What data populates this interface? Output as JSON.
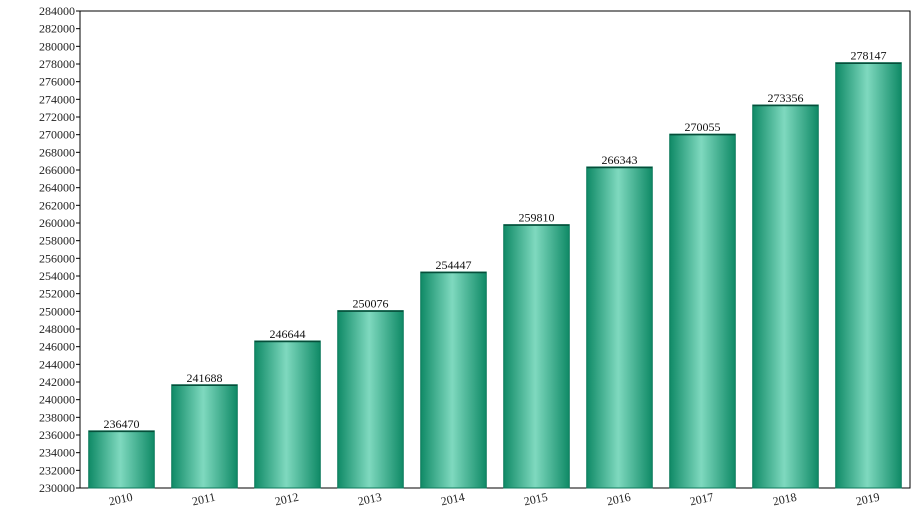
{
  "chart_data": {
    "type": "bar",
    "categories": [
      "2010",
      "2011",
      "2012",
      "2013",
      "2014",
      "2015",
      "2016",
      "2017",
      "2018",
      "2019"
    ],
    "values": [
      236470,
      241688,
      246644,
      250076,
      254447,
      259810,
      266343,
      270055,
      273356,
      278147
    ],
    "data_labels": [
      "236470",
      "241688",
      "246644",
      "250076",
      "254447",
      "259810",
      "266343",
      "270055",
      "273356",
      "278147"
    ],
    "ylim": [
      230000,
      284000
    ],
    "ytick_step": 2000,
    "grid": false,
    "x_label_rotation": "angled",
    "colors": {
      "bar_edge": "#0c7a5c",
      "bar_dark": "#0f8a66",
      "bar_light": "#7fd9bf",
      "axis": "#000000"
    }
  }
}
